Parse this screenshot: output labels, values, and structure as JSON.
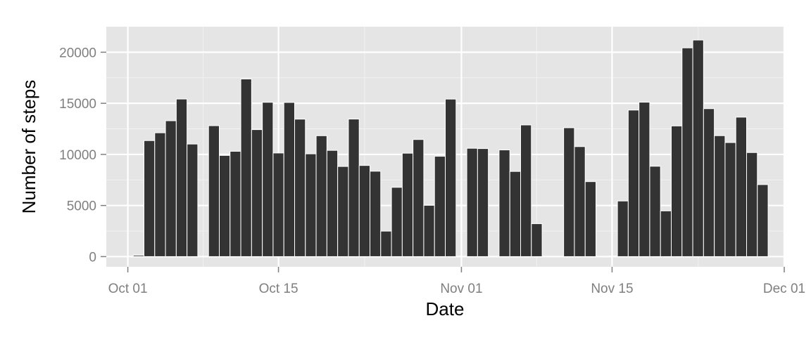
{
  "chart_data": {
    "type": "bar",
    "title": "",
    "xlabel": "Date",
    "ylabel": "Number of steps",
    "x_range": [
      "2012-09-29",
      "2012-12-01"
    ],
    "ylim": [
      -1000,
      22500
    ],
    "y_ticks": [
      0,
      5000,
      10000,
      15000,
      20000
    ],
    "y_tick_labels": [
      "0",
      "5000",
      "10000",
      "15000",
      "20000"
    ],
    "x_ticks": [
      {
        "date": "2012-10-01",
        "label": "Oct 01"
      },
      {
        "date": "2012-10-15",
        "label": "Oct 15"
      },
      {
        "date": "2012-11-01",
        "label": "Nov 01"
      },
      {
        "date": "2012-11-15",
        "label": "Nov 15"
      },
      {
        "date": "2012-12-01",
        "label": "Dec 01"
      }
    ],
    "minor_x_ticks": [
      "2012-10-08",
      "2012-10-23",
      "2012-11-08",
      "2012-11-23"
    ],
    "minor_y_ticks": [
      2500,
      7500,
      12500,
      17500
    ],
    "grid": true,
    "colors": {
      "bar": "#333333",
      "panel": "#e5e5e5",
      "grid": "#ffffff",
      "bar_outline": "#ffffff"
    },
    "series": [
      {
        "name": "steps",
        "dates": [
          "2012-10-02",
          "2012-10-03",
          "2012-10-04",
          "2012-10-05",
          "2012-10-06",
          "2012-10-07",
          "2012-10-09",
          "2012-10-10",
          "2012-10-11",
          "2012-10-12",
          "2012-10-13",
          "2012-10-14",
          "2012-10-15",
          "2012-10-16",
          "2012-10-17",
          "2012-10-18",
          "2012-10-19",
          "2012-10-20",
          "2012-10-21",
          "2012-10-22",
          "2012-10-23",
          "2012-10-24",
          "2012-10-25",
          "2012-10-26",
          "2012-10-27",
          "2012-10-28",
          "2012-10-29",
          "2012-10-30",
          "2012-10-31",
          "2012-11-02",
          "2012-11-03",
          "2012-11-05",
          "2012-11-06",
          "2012-11-07",
          "2012-11-08",
          "2012-11-11",
          "2012-11-12",
          "2012-11-13",
          "2012-11-15",
          "2012-11-16",
          "2012-11-17",
          "2012-11-18",
          "2012-11-19",
          "2012-11-20",
          "2012-11-21",
          "2012-11-22",
          "2012-11-23",
          "2012-11-24",
          "2012-11-25",
          "2012-11-26",
          "2012-11-27",
          "2012-11-28",
          "2012-11-29"
        ],
        "values": [
          126,
          11352,
          12116,
          13294,
          15420,
          11015,
          12811,
          9900,
          10304,
          17382,
          12426,
          15098,
          10139,
          15084,
          13452,
          10056,
          11829,
          10395,
          8821,
          13460,
          8918,
          8355,
          2492,
          6778,
          10119,
          11458,
          5018,
          9819,
          15414,
          10600,
          10571,
          10439,
          8334,
          12883,
          3219,
          12608,
          10765,
          7336,
          41,
          5441,
          14339,
          15110,
          8841,
          4472,
          12787,
          20427,
          21194,
          14478,
          11834,
          11162,
          13646,
          10183,
          7047
        ]
      }
    ]
  }
}
